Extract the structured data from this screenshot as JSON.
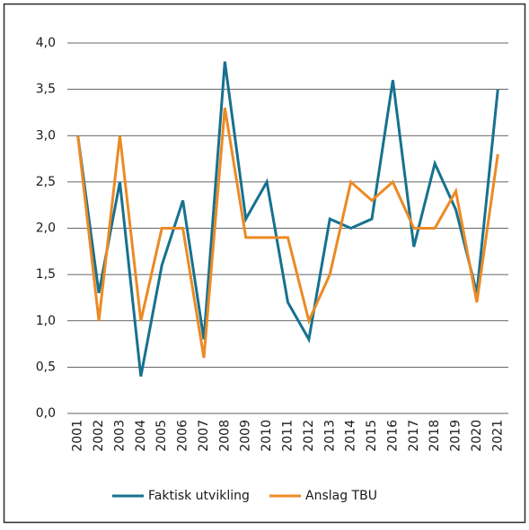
{
  "chart_data": {
    "type": "line",
    "categories": [
      "2001",
      "2002",
      "2003",
      "2004",
      "2005",
      "2006",
      "2007",
      "2008",
      "2009",
      "2010",
      "2011",
      "2012",
      "2013",
      "2014",
      "2015",
      "2016",
      "2017",
      "2018",
      "2019",
      "2020",
      "2021"
    ],
    "series": [
      {
        "name": "Faktisk utvikling",
        "color": "#17718f",
        "values": [
          3.0,
          1.3,
          2.5,
          0.4,
          1.6,
          2.3,
          0.8,
          3.8,
          2.1,
          2.5,
          1.2,
          0.8,
          2.1,
          2.0,
          2.1,
          3.6,
          1.8,
          2.7,
          2.2,
          1.3,
          3.5
        ]
      },
      {
        "name": "Anslag TBU",
        "color": "#ec8a24",
        "values": [
          3.0,
          1.0,
          3.0,
          1.0,
          2.0,
          2.0,
          0.6,
          3.3,
          1.9,
          1.9,
          1.9,
          1.0,
          1.5,
          2.5,
          2.3,
          2.5,
          2.0,
          2.0,
          2.4,
          1.2,
          2.8
        ]
      }
    ],
    "ylim": [
      0,
      4
    ],
    "yticks": [
      {
        "value": 0,
        "label": "0,0"
      },
      {
        "value": 0.5,
        "label": "0,5"
      },
      {
        "value": 1,
        "label": "1,0"
      },
      {
        "value": 1.5,
        "label": "1,5"
      },
      {
        "value": 2,
        "label": "2,0"
      },
      {
        "value": 2.5,
        "label": "2,5"
      },
      {
        "value": 3,
        "label": "3,0"
      },
      {
        "value": 3.5,
        "label": "3,5"
      },
      {
        "value": 4,
        "label": "4,0"
      }
    ],
    "grid": true,
    "legend": "bottom"
  }
}
